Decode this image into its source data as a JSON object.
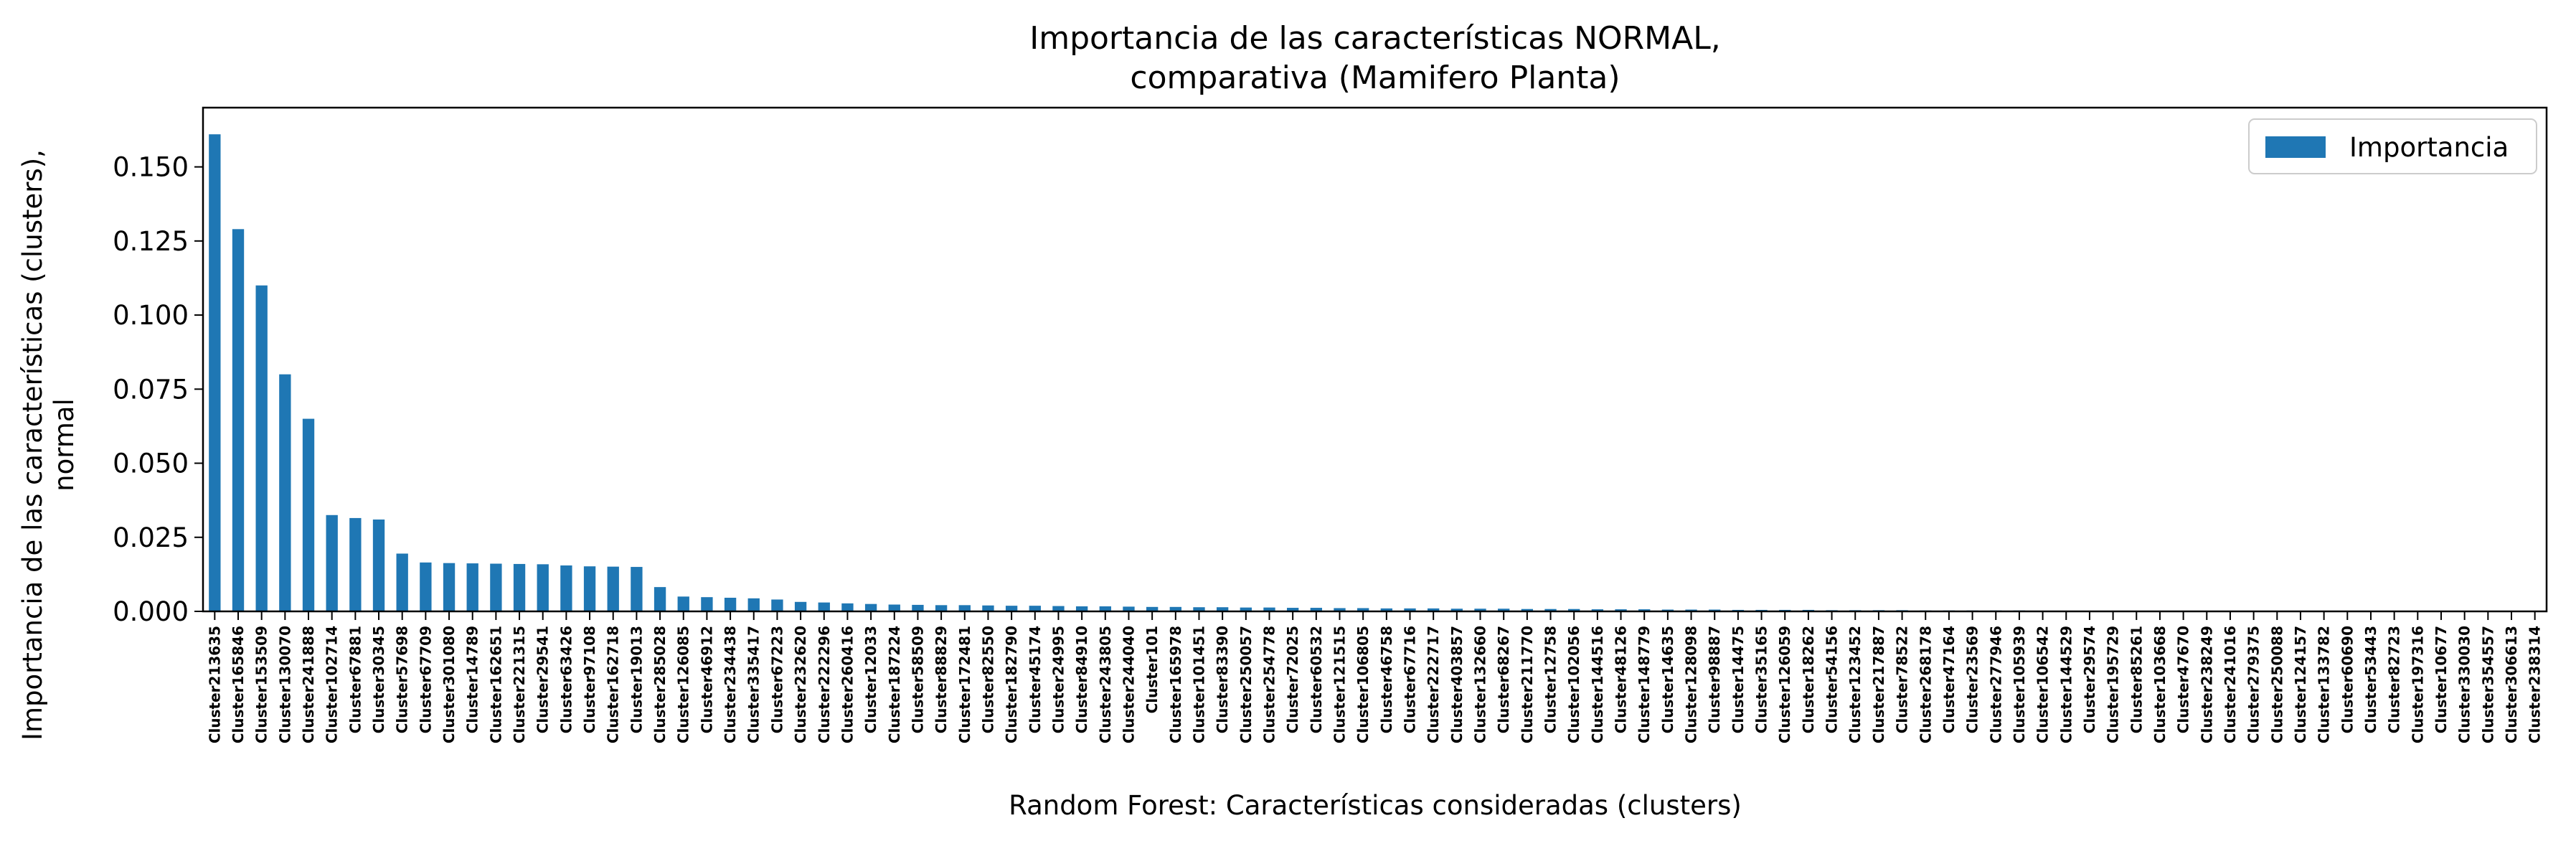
{
  "chart_data": {
    "type": "bar",
    "title_lines": [
      "Importancia de las características NORMAL,",
      "comparativa (Mamifero Planta)"
    ],
    "xlabel": "Random Forest: Características consideradas (clusters)",
    "ylabel_lines": [
      "Importancia de las características (clusters),",
      "normal"
    ],
    "ylim": [
      0,
      0.17
    ],
    "yticks": [
      0.0,
      0.025,
      0.05,
      0.075,
      0.1,
      0.125,
      0.15
    ],
    "ytick_labels": [
      "0.000",
      "0.025",
      "0.050",
      "0.075",
      "0.100",
      "0.125",
      "0.150"
    ],
    "grid": false,
    "legend": {
      "position": "top-right",
      "entries": [
        "Importancia"
      ]
    },
    "colors": {
      "bar": "#1f77b4"
    },
    "series": [
      {
        "name": "Importancia"
      }
    ],
    "categories": [
      "Cluster213635",
      "Cluster165846",
      "Cluster153509",
      "Cluster130070",
      "Cluster241888",
      "Cluster102714",
      "Cluster67881",
      "Cluster30345",
      "Cluster57698",
      "Cluster67709",
      "Cluster301080",
      "Cluster14789",
      "Cluster162651",
      "Cluster221315",
      "Cluster29541",
      "Cluster63426",
      "Cluster97108",
      "Cluster162718",
      "Cluster19013",
      "Cluster285028",
      "Cluster126085",
      "Cluster46912",
      "Cluster234438",
      "Cluster335417",
      "Cluster67223",
      "Cluster232620",
      "Cluster222296",
      "Cluster260416",
      "Cluster12033",
      "Cluster187224",
      "Cluster58509",
      "Cluster88829",
      "Cluster172481",
      "Cluster82550",
      "Cluster182790",
      "Cluster45174",
      "Cluster24995",
      "Cluster84910",
      "Cluster243805",
      "Cluster244040",
      "Cluster101",
      "Cluster165978",
      "Cluster101451",
      "Cluster83390",
      "Cluster250057",
      "Cluster254778",
      "Cluster72025",
      "Cluster60532",
      "Cluster121515",
      "Cluster106805",
      "Cluster46758",
      "Cluster67716",
      "Cluster222717",
      "Cluster403857",
      "Cluster132660",
      "Cluster68267",
      "Cluster211770",
      "Cluster12758",
      "Cluster102056",
      "Cluster144516",
      "Cluster48126",
      "Cluster148779",
      "Cluster14635",
      "Cluster128098",
      "Cluster98887",
      "Cluster14475",
      "Cluster35165",
      "Cluster126059",
      "Cluster18262",
      "Cluster54156",
      "Cluster123452",
      "Cluster217887",
      "Cluster78522",
      "Cluster268178",
      "Cluster47164",
      "Cluster23569",
      "Cluster277946",
      "Cluster105939",
      "Cluster106542",
      "Cluster144529",
      "Cluster29574",
      "Cluster195729",
      "Cluster85261",
      "Cluster103668",
      "Cluster47670",
      "Cluster238249",
      "Cluster241016",
      "Cluster279375",
      "Cluster250088",
      "Cluster124157",
      "Cluster133782",
      "Cluster60690",
      "Cluster53443",
      "Cluster82723",
      "Cluster197316",
      "Cluster10677",
      "Cluster330030",
      "Cluster354557",
      "Cluster306613",
      "Cluster238314"
    ],
    "values": [
      0.161,
      0.129,
      0.11,
      0.08,
      0.065,
      0.0325,
      0.0315,
      0.031,
      0.0195,
      0.0165,
      0.0163,
      0.0162,
      0.0161,
      0.016,
      0.0159,
      0.0155,
      0.0152,
      0.0151,
      0.015,
      0.0082,
      0.005,
      0.0048,
      0.0046,
      0.0044,
      0.004,
      0.0032,
      0.003,
      0.0027,
      0.0025,
      0.0023,
      0.0022,
      0.0021,
      0.0021,
      0.002,
      0.0019,
      0.0019,
      0.0018,
      0.0017,
      0.0017,
      0.0016,
      0.0015,
      0.0015,
      0.0014,
      0.0014,
      0.0013,
      0.0013,
      0.0012,
      0.0012,
      0.0011,
      0.0011,
      0.001,
      0.001,
      0.001,
      0.0009,
      0.0009,
      0.0009,
      0.0008,
      0.0008,
      0.0008,
      0.0007,
      0.0007,
      0.0007,
      0.0006,
      0.0006,
      0.0006,
      0.0005,
      0.0005,
      0.0005,
      0.0005,
      0.0004,
      0.0004,
      0.0004,
      0.0004,
      0.0003,
      0.0003,
      0.0003,
      0.0003,
      0.0003,
      0.0002,
      0.0002,
      0.0002,
      0.0002,
      0.0002,
      0.0002,
      0.0001,
      0.0001,
      0.0001,
      0.0001,
      0.0001,
      0.0001,
      0.0001,
      0.0001,
      5e-05,
      5e-05,
      5e-05,
      5e-05,
      3e-05,
      3e-05,
      2e-05,
      1e-05
    ]
  }
}
